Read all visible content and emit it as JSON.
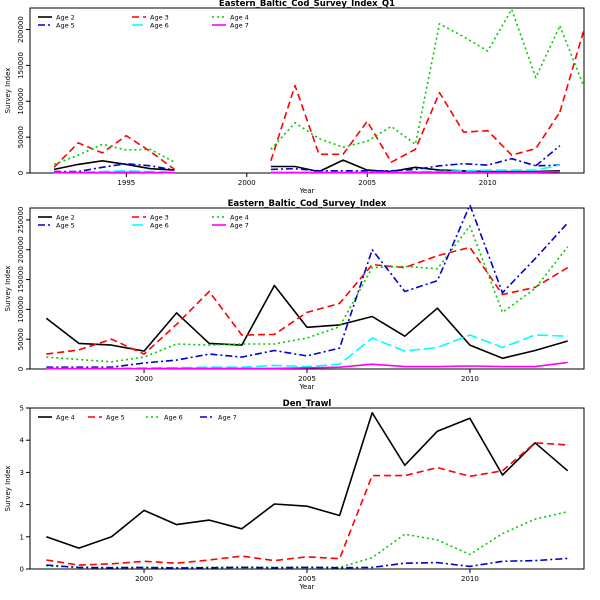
{
  "chart_data": [
    {
      "type": "line",
      "title": "Eastern_Baltic_Cod_Survey_Index_Q1",
      "xlabel": "Year",
      "ylabel": "Survey Index",
      "xlim": [
        1991,
        2014
      ],
      "ylim": [
        0,
        230000
      ],
      "xticks": [
        1995,
        2000,
        2005,
        2010
      ],
      "yticks": [
        0,
        50000,
        100000,
        150000,
        200000
      ],
      "ytick_rotated": true,
      "legend_ncol": 3,
      "x": [
        1992,
        1993,
        1994,
        1995,
        1996,
        1997,
        1998,
        1999,
        2000,
        2001,
        2002,
        2003,
        2004,
        2005,
        2006,
        2007,
        2008,
        2009,
        2010,
        2011,
        2012,
        2013
      ],
      "series": [
        {
          "name": "Age 2",
          "color": "#000000",
          "dash": "solid",
          "values": [
            5000,
            12000,
            17000,
            12000,
            6000,
            4000,
            null,
            null,
            null,
            9000,
            9000,
            2000,
            18000,
            4000,
            2000,
            8000,
            4000,
            3000,
            2000,
            2000,
            2000,
            3000
          ]
        },
        {
          "name": "Age 3",
          "color": "#ff0000",
          "dash": "dashed",
          "values": [
            8000,
            42000,
            28000,
            52000,
            30000,
            5000,
            null,
            null,
            null,
            17000,
            122000,
            26000,
            26000,
            72000,
            15000,
            33000,
            112000,
            57000,
            59000,
            25000,
            34000,
            85000
          ]
        },
        {
          "name": "Age 4",
          "color": "#00cc00",
          "dash": "dotted",
          "values": [
            12000,
            25000,
            40000,
            32000,
            33000,
            15000,
            null,
            null,
            null,
            33000,
            70000,
            48000,
            36000,
            44000,
            65000,
            40000,
            208000,
            190000,
            170000,
            228000,
            133000,
            205000
          ]
        },
        {
          "name": "Age 5",
          "color": "#0000cc",
          "dash": "dashdot",
          "values": [
            2000,
            2000,
            8000,
            13000,
            10000,
            4000,
            null,
            null,
            null,
            5000,
            6000,
            3000,
            3000,
            3000,
            3000,
            5000,
            10000,
            13000,
            11000,
            20000,
            10000,
            11000
          ]
        },
        {
          "name": "Age 6",
          "color": "#00ffff",
          "dash": "longdash",
          "values": [
            1000,
            1000,
            2000,
            3000,
            2000,
            1000,
            null,
            null,
            null,
            1000,
            1000,
            1000,
            1000,
            1000,
            1000,
            2000,
            2000,
            3000,
            4000,
            4000,
            4000,
            11000
          ]
        },
        {
          "name": "Age 7",
          "color": "#ff00ff",
          "dash": "solid",
          "values": [
            500,
            500,
            500,
            1000,
            500,
            500,
            null,
            null,
            null,
            500,
            500,
            500,
            500,
            500,
            500,
            1000,
            1000,
            1000,
            1000,
            1000,
            1000,
            2000
          ]
        }
      ],
      "extra_lines": [
        {
          "color": "#0000cc",
          "dash": "dashdot",
          "x": [
            2012,
            2013
          ],
          "values": [
            10000,
            38000
          ]
        },
        {
          "color": "#ff0000",
          "dash": "dashed",
          "x": [
            2013,
            2014
          ],
          "values": [
            85000,
            200000
          ]
        },
        {
          "color": "#00cc00",
          "dash": "dotted",
          "x": [
            2013,
            2014
          ],
          "values": [
            205000,
            120000
          ]
        }
      ]
    },
    {
      "type": "line",
      "title": "Eastern_Baltic_Cod_Survey_Index",
      "xlabel": "Year",
      "ylabel": "Survey Index",
      "xlim": [
        1996.5,
        2013.5
      ],
      "ylim": [
        0,
        270000
      ],
      "xticks": [
        2000,
        2005,
        2010
      ],
      "yticks": [
        0,
        50000,
        100000,
        150000,
        200000,
        250000
      ],
      "ytick_rotated": true,
      "legend_ncol": 3,
      "x": [
        1997,
        1998,
        1999,
        2000,
        2001,
        2002,
        2003,
        2004,
        2005,
        2006,
        2007,
        2008,
        2009,
        2010,
        2011,
        2012,
        2013
      ],
      "series": [
        {
          "name": "Age 2",
          "color": "#000000",
          "dash": "solid",
          "values": [
            85000,
            43000,
            40000,
            30000,
            94000,
            43000,
            40000,
            140000,
            70000,
            74000,
            88000,
            55000,
            102000,
            40000,
            18000,
            31000,
            47000
          ]
        },
        {
          "name": "Age 3",
          "color": "#ff0000",
          "dash": "dashed",
          "values": [
            25000,
            32000,
            50000,
            25000,
            75000,
            130000,
            57000,
            58000,
            95000,
            110000,
            175000,
            170000,
            190000,
            204000,
            125000,
            137000,
            170000
          ]
        },
        {
          "name": "Age 4",
          "color": "#00cc00",
          "dash": "dotted",
          "values": [
            20000,
            16000,
            12000,
            20000,
            42000,
            40000,
            42000,
            42000,
            52000,
            71000,
            170000,
            172000,
            168000,
            240000,
            95000,
            135000,
            205000
          ]
        },
        {
          "name": "Age 5",
          "color": "#0000cc",
          "dash": "dashdot",
          "values": [
            3000,
            3000,
            3000,
            10000,
            15000,
            25000,
            20000,
            31000,
            22000,
            35000,
            200000,
            130000,
            148000,
            275000,
            128000,
            185000,
            245000
          ]
        },
        {
          "name": "Age 6",
          "color": "#00ffff",
          "dash": "longdash",
          "values": [
            1000,
            1000,
            1000,
            2000,
            2000,
            3000,
            3000,
            6000,
            4000,
            8000,
            52000,
            30000,
            36000,
            57000,
            36000,
            57000,
            55000
          ]
        },
        {
          "name": "Age 7",
          "color": "#ff00ff",
          "dash": "solid",
          "values": [
            500,
            500,
            500,
            500,
            1000,
            1000,
            1000,
            1000,
            2000,
            3000,
            8000,
            4000,
            4000,
            5000,
            4000,
            4000,
            11000
          ]
        }
      ],
      "extra_lines": []
    },
    {
      "type": "line",
      "title": "Den_Trawl",
      "xlabel": "Year",
      "ylabel": "Survey Index",
      "xlim": [
        1996.5,
        2013.5
      ],
      "ylim": [
        0,
        5
      ],
      "xticks": [
        2000,
        2005,
        2010
      ],
      "yticks": [
        0,
        1,
        2,
        3,
        4,
        5
      ],
      "ytick_rotated": false,
      "legend_ncol": 4,
      "x": [
        1997,
        1998,
        1999,
        2000,
        2001,
        2002,
        2003,
        2004,
        2005,
        2006,
        2007,
        2008,
        2009,
        2010,
        2011,
        2012,
        2013
      ],
      "series": [
        {
          "name": "Age 4",
          "color": "#000000",
          "dash": "solid",
          "values": [
            1.0,
            0.65,
            1.0,
            1.82,
            1.38,
            1.52,
            1.25,
            2.02,
            1.95,
            1.66,
            4.85,
            3.22,
            4.28,
            4.68,
            2.92,
            3.92,
            3.05
          ]
        },
        {
          "name": "Age 5",
          "color": "#ff0000",
          "dash": "dashed",
          "values": [
            0.28,
            0.12,
            0.16,
            0.24,
            0.18,
            0.28,
            0.4,
            0.26,
            0.38,
            0.32,
            2.9,
            2.9,
            3.15,
            2.88,
            3.05,
            3.92,
            3.85
          ]
        },
        {
          "name": "Age 6",
          "color": "#00cc00",
          "dash": "dotted",
          "values": [
            0.1,
            0.05,
            0.04,
            0.05,
            0.04,
            0.05,
            0.06,
            0.05,
            0.06,
            0.05,
            0.35,
            1.08,
            0.9,
            0.45,
            1.1,
            1.55,
            1.78
          ]
        },
        {
          "name": "Age 7",
          "color": "#0000cc",
          "dash": "dashdot",
          "values": [
            0.12,
            0.05,
            0.04,
            0.05,
            0.03,
            0.04,
            0.05,
            0.04,
            0.05,
            0.04,
            0.05,
            0.18,
            0.2,
            0.08,
            0.24,
            0.26,
            0.33
          ]
        }
      ],
      "extra_lines": []
    }
  ]
}
